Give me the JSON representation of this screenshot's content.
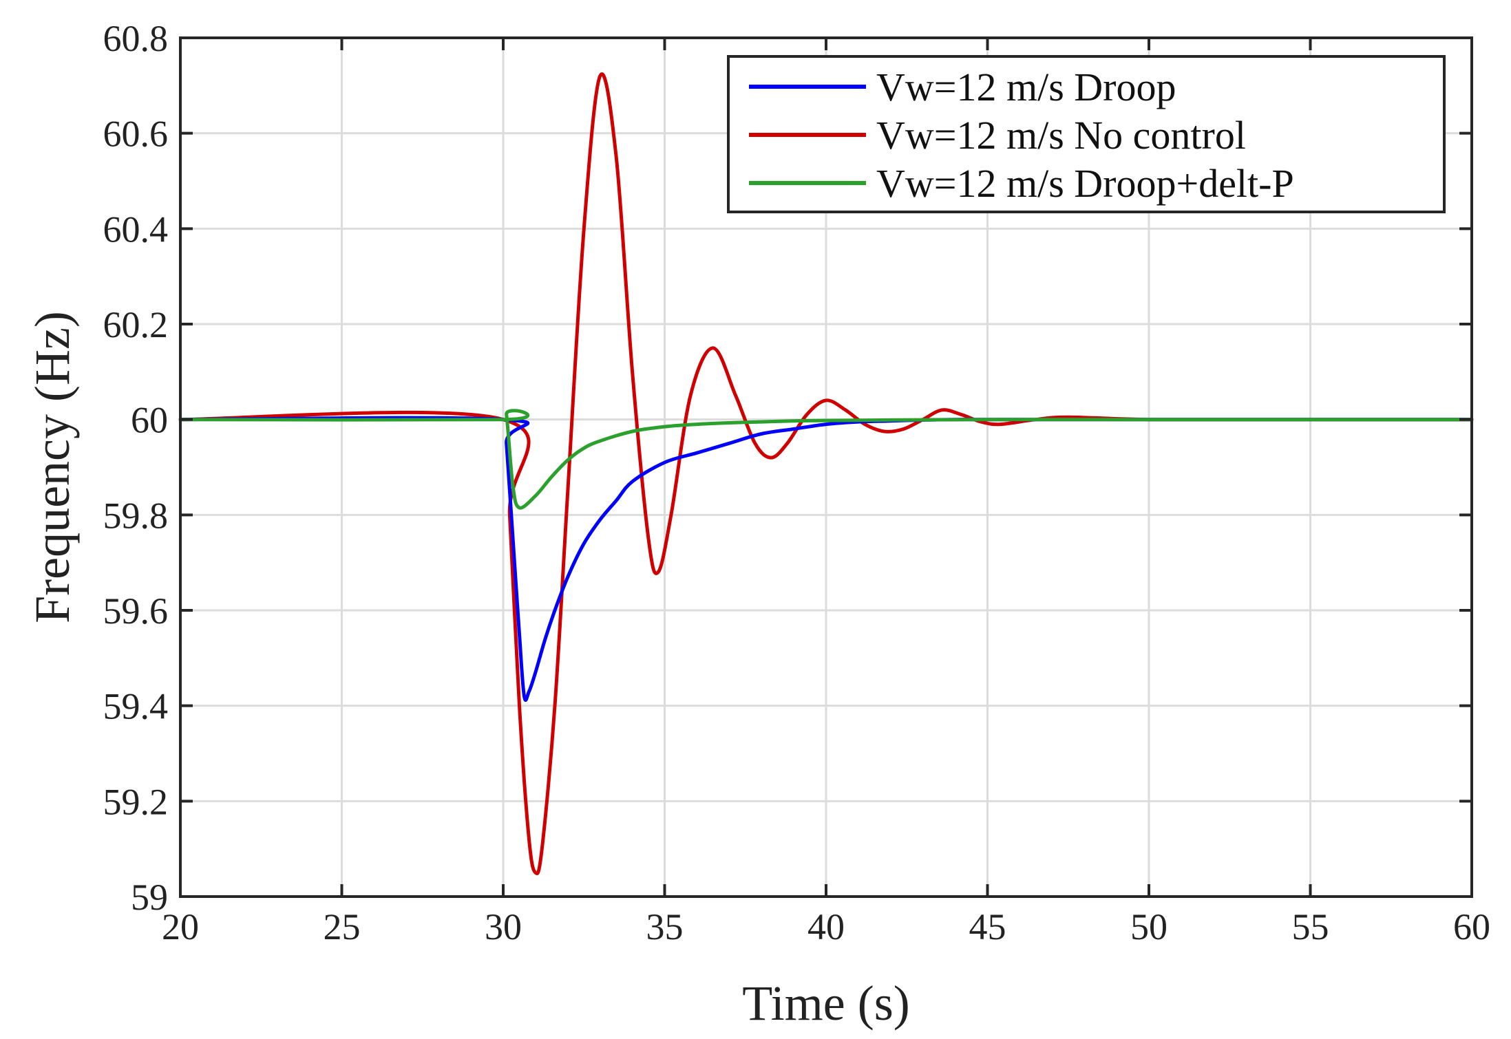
{
  "chart_data": {
    "type": "line",
    "title": "",
    "xlabel": "Time (s)",
    "ylabel": "Frequency (Hz)",
    "xlim": [
      20,
      60
    ],
    "ylim": [
      59,
      60.8
    ],
    "xticks": [
      20,
      25,
      30,
      35,
      40,
      45,
      50,
      55,
      60
    ],
    "yticks": [
      59,
      59.2,
      59.4,
      59.6,
      59.8,
      60,
      60.2,
      60.4,
      60.6,
      60.8
    ],
    "xtick_labels": [
      "20",
      "25",
      "30",
      "35",
      "40",
      "45",
      "50",
      "55",
      "60"
    ],
    "ytick_labels": [
      "59",
      "59.2",
      "59.4",
      "59.6",
      "59.8",
      "60",
      "60.2",
      "60.4",
      "60.6",
      "60.8"
    ],
    "grid": true,
    "legend_position": "top-right",
    "series": [
      {
        "name": "Vw=12 m/s Droop",
        "color": "#0000ff",
        "x": [
          20,
          30,
          30.1,
          30.3,
          30.5,
          30.65,
          30.8,
          31.0,
          31.3,
          31.6,
          32.0,
          32.5,
          33.0,
          33.5,
          34.0,
          35.0,
          36.0,
          37.0,
          38.0,
          39.0,
          40.0,
          41.0,
          42.0,
          43.0,
          44.0,
          45.0,
          47.5,
          50.0,
          55.0,
          60.0
        ],
        "y": [
          60.0,
          60.0,
          59.95,
          59.75,
          59.55,
          59.42,
          59.43,
          59.47,
          59.54,
          59.6,
          59.67,
          59.74,
          59.79,
          59.83,
          59.87,
          59.91,
          59.93,
          59.95,
          59.97,
          59.98,
          59.99,
          59.995,
          59.997,
          59.999,
          60.0,
          60.0,
          60.0,
          60.0,
          60.0,
          60.0
        ]
      },
      {
        "name": "Vw=12 m/s No control",
        "color": "#d00000",
        "x": [
          20,
          30,
          30.2,
          30.5,
          30.8,
          31.0,
          31.2,
          31.6,
          32.0,
          32.5,
          33.0,
          33.5,
          34.0,
          34.5,
          34.8,
          35.2,
          35.8,
          36.5,
          37.2,
          37.8,
          38.3,
          38.8,
          39.4,
          40.0,
          40.6,
          41.2,
          41.8,
          42.4,
          43.0,
          43.6,
          44.2,
          44.8,
          45.4,
          46.5,
          47.5,
          50.0,
          55.0,
          60.0
        ],
        "y": [
          60.0,
          60.0,
          59.8,
          59.4,
          59.12,
          59.05,
          59.1,
          59.4,
          59.85,
          60.4,
          60.72,
          60.55,
          60.1,
          59.75,
          59.68,
          59.8,
          60.05,
          60.15,
          60.05,
          59.95,
          59.92,
          59.95,
          60.01,
          60.04,
          60.02,
          59.99,
          59.975,
          59.98,
          60.0,
          60.02,
          60.01,
          59.995,
          59.99,
          60.0,
          60.005,
          60.0,
          60.0,
          60.0
        ]
      },
      {
        "name": "Vw=12 m/s Droop+delt-P",
        "color": "#2ca02c",
        "x": [
          20,
          30,
          30.1,
          30.3,
          30.5,
          31.0,
          31.5,
          32.0,
          32.5,
          33.0,
          34.0,
          35.0,
          36.0,
          37.0,
          38.0,
          39.0,
          40.0,
          42.0,
          45.0,
          50.0,
          55.0,
          60.0
        ],
        "y": [
          60.0,
          60.0,
          60.01,
          59.86,
          59.815,
          59.84,
          59.88,
          59.915,
          59.94,
          59.955,
          59.975,
          59.985,
          59.99,
          59.993,
          59.995,
          59.997,
          59.998,
          59.999,
          60.0,
          60.0,
          60.0,
          60.0
        ]
      }
    ]
  }
}
